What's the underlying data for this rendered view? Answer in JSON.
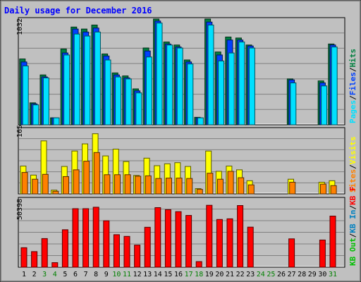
{
  "title": "Daily usage for December 2016",
  "colors": {
    "background": "#C0C0C0",
    "title": "#0000FF",
    "hits": "#008040",
    "files": "#0040FF",
    "pages": "#00E0FF",
    "visits": "#FFFF00",
    "sites": "#FF8000",
    "kb_in": "#0080C0",
    "kb_out": "#00C000",
    "kbytes": "#FF0000",
    "weekend": "#008000",
    "weekday": "#000000"
  },
  "chart_data": [
    {
      "type": "bar",
      "name": "hits-files-pages",
      "scale_label": "1032",
      "legend": [
        {
          "key": "hits",
          "label": "Hits"
        },
        {
          "key": "files",
          "label": "Files"
        },
        {
          "key": "pages",
          "label": "Pages"
        }
      ],
      "ylim": [
        0,
        1032
      ],
      "series": [
        {
          "name": "Hits",
          "color_key": "hits",
          "values": [
            660,
            220,
            500,
            70,
            760,
            980,
            960,
            1000,
            710,
            520,
            490,
            360,
            770,
            1060,
            830,
            800,
            650,
            75,
            1060,
            730,
            880,
            870,
            800,
            0,
            0,
            0,
            460,
            0,
            0,
            440,
            810
          ]
        },
        {
          "name": "Files",
          "color_key": "files",
          "values": [
            630,
            210,
            480,
            70,
            720,
            960,
            930,
            970,
            690,
            500,
            470,
            340,
            740,
            1040,
            810,
            780,
            630,
            70,
            1030,
            700,
            850,
            850,
            790,
            0,
            0,
            0,
            450,
            0,
            0,
            420,
            800
          ]
        },
        {
          "name": "Pages",
          "color_key": "pages",
          "values": [
            590,
            200,
            470,
            70,
            700,
            910,
            890,
            930,
            650,
            480,
            460,
            320,
            680,
            1020,
            800,
            770,
            610,
            70,
            1000,
            640,
            720,
            830,
            770,
            0,
            0,
            0,
            420,
            0,
            0,
            390,
            780
          ]
        }
      ]
    },
    {
      "type": "bar",
      "name": "visits-sites",
      "scale_label": "165",
      "legend": [
        {
          "key": "visits",
          "label": "Visits"
        },
        {
          "key": "sites",
          "label": "Sites"
        }
      ],
      "ylim": [
        0,
        165
      ],
      "series": [
        {
          "name": "Visits",
          "color_key": "visits",
          "values": [
            74,
            50,
            141,
            10,
            73,
            114,
            133,
            160,
            101,
            119,
            86,
            49,
            95,
            75,
            80,
            83,
            73,
            14,
            114,
            60,
            74,
            64,
            35,
            0,
            0,
            0,
            39,
            0,
            0,
            31,
            35
          ]
        },
        {
          "name": "Sites",
          "color_key": "sites",
          "values": [
            57,
            39,
            52,
            7,
            46,
            64,
            87,
            110,
            51,
            51,
            51,
            47,
            48,
            41,
            42,
            42,
            41,
            12,
            55,
            39,
            60,
            43,
            24,
            0,
            0,
            0,
            31,
            0,
            0,
            26,
            22
          ]
        }
      ]
    },
    {
      "type": "bar",
      "name": "kbytes",
      "scale_label": "50398",
      "legend": [
        {
          "key": "kbytes",
          "label": "KB F"
        },
        {
          "key": "kb_in",
          "label": "KB In"
        },
        {
          "key": "kb_out",
          "label": "KB Out"
        }
      ],
      "ylim": [
        0,
        50398
      ],
      "series": [
        {
          "name": "KB F",
          "color_key": "kbytes",
          "values": [
            15000,
            12000,
            22000,
            3500,
            28800,
            45000,
            45000,
            46100,
            35700,
            25000,
            23700,
            17000,
            30700,
            45800,
            44200,
            42700,
            39800,
            4300,
            47600,
            36700,
            37200,
            47400,
            30800,
            0,
            0,
            0,
            21800,
            0,
            0,
            20900,
            39300
          ]
        }
      ]
    }
  ],
  "days": [
    "1",
    "2",
    "3",
    "4",
    "5",
    "6",
    "7",
    "8",
    "9",
    "10",
    "11",
    "12",
    "13",
    "14",
    "15",
    "16",
    "17",
    "18",
    "19",
    "20",
    "21",
    "22",
    "23",
    "24",
    "25",
    "26",
    "27",
    "28",
    "29",
    "30",
    "31"
  ],
  "weekend_days": [
    3,
    4,
    10,
    11,
    17,
    18,
    24,
    25,
    31
  ]
}
